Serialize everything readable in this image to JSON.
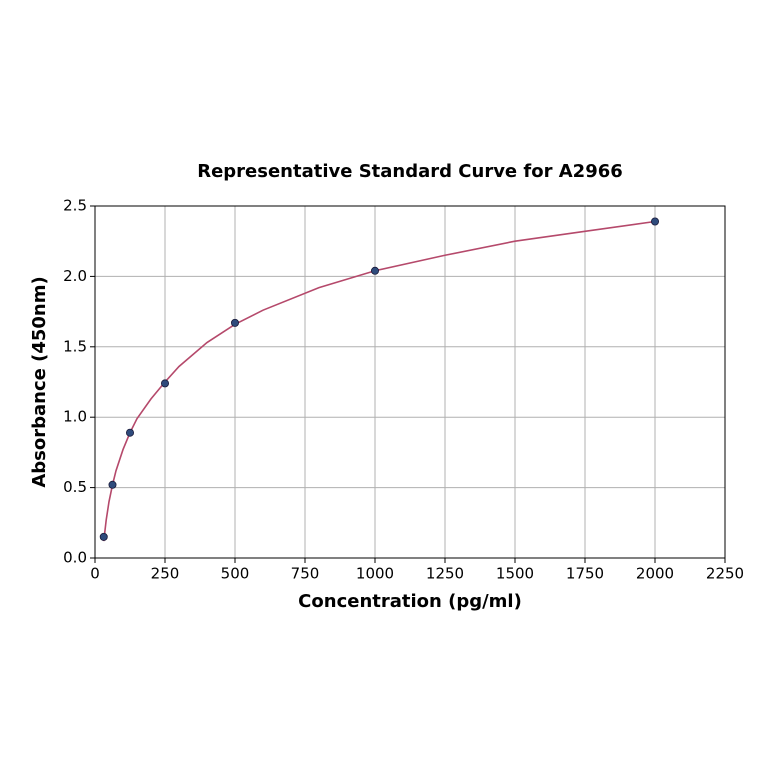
{
  "chart_data": {
    "type": "scatter",
    "title": "Representative Standard Curve for A2966",
    "x_label": "Concentration (pg/ml)",
    "y_label": "Absorbance (450nm)",
    "xlim": [
      0,
      2250
    ],
    "ylim": [
      0,
      2.5
    ],
    "xticks": [
      0,
      250,
      500,
      750,
      1000,
      1250,
      1500,
      1750,
      2000,
      2250
    ],
    "yticks": [
      {
        "value": 0,
        "label": "0.0"
      },
      0.5,
      {
        "value": 1,
        "label": "1.0"
      },
      1.5,
      {
        "value": 2,
        "label": "2.0"
      },
      2.5
    ],
    "grid": true,
    "series": [
      {
        "type": "scatter",
        "color": "#2f4b7c",
        "x": [
          31.25,
          62.5,
          125,
          250,
          500,
          1000,
          2000
        ],
        "values": [
          0.15,
          0.52,
          0.89,
          1.24,
          1.67,
          2.04,
          2.39
        ]
      },
      {
        "type": "line",
        "color": "#b5496b",
        "x": [
          31.25,
          40,
          50,
          62.5,
          75,
          100,
          125,
          150,
          200,
          250,
          300,
          400,
          500,
          600,
          800,
          1000,
          1250,
          1500,
          1750,
          2000
        ],
        "values": [
          0.12,
          0.27,
          0.4,
          0.52,
          0.62,
          0.77,
          0.89,
          0.99,
          1.13,
          1.25,
          1.36,
          1.53,
          1.66,
          1.76,
          1.92,
          2.04,
          2.15,
          2.25,
          2.32,
          2.39
        ]
      }
    ]
  }
}
